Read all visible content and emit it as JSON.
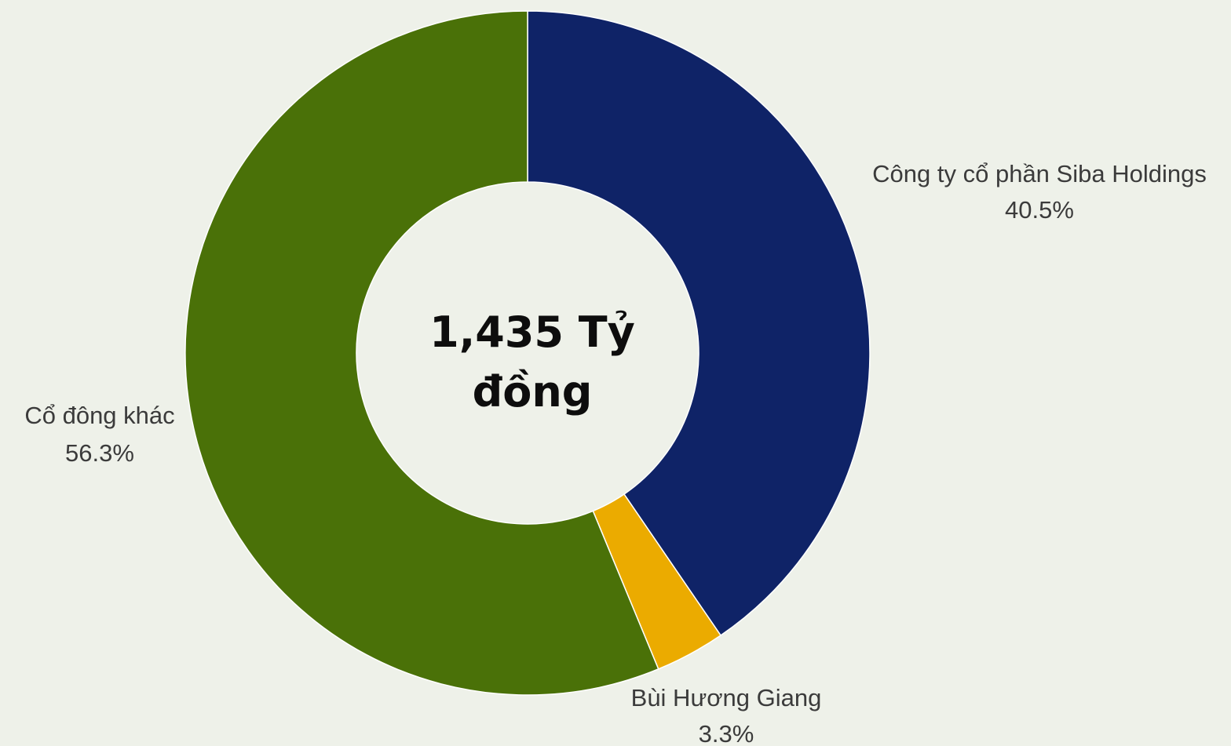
{
  "chart_data": {
    "type": "pie",
    "donut": true,
    "center_label": [
      "1,435 Tỷ",
      "đồng"
    ],
    "slices": [
      {
        "name": "Công ty cổ phần Siba Holdings",
        "value": 40.5,
        "label": "40.5%",
        "color": "#0f2367"
      },
      {
        "name": "Bùi Hương Giang",
        "value": 3.3,
        "label": "3.3%",
        "color": "#ebab00"
      },
      {
        "name": "Cổ đông khác",
        "value": 56.3,
        "label": "56.3%",
        "color": "#4a7108"
      }
    ],
    "start_angle_deg": 0,
    "direction": "clockwise",
    "legend": "none",
    "background": "#eef1e9"
  }
}
